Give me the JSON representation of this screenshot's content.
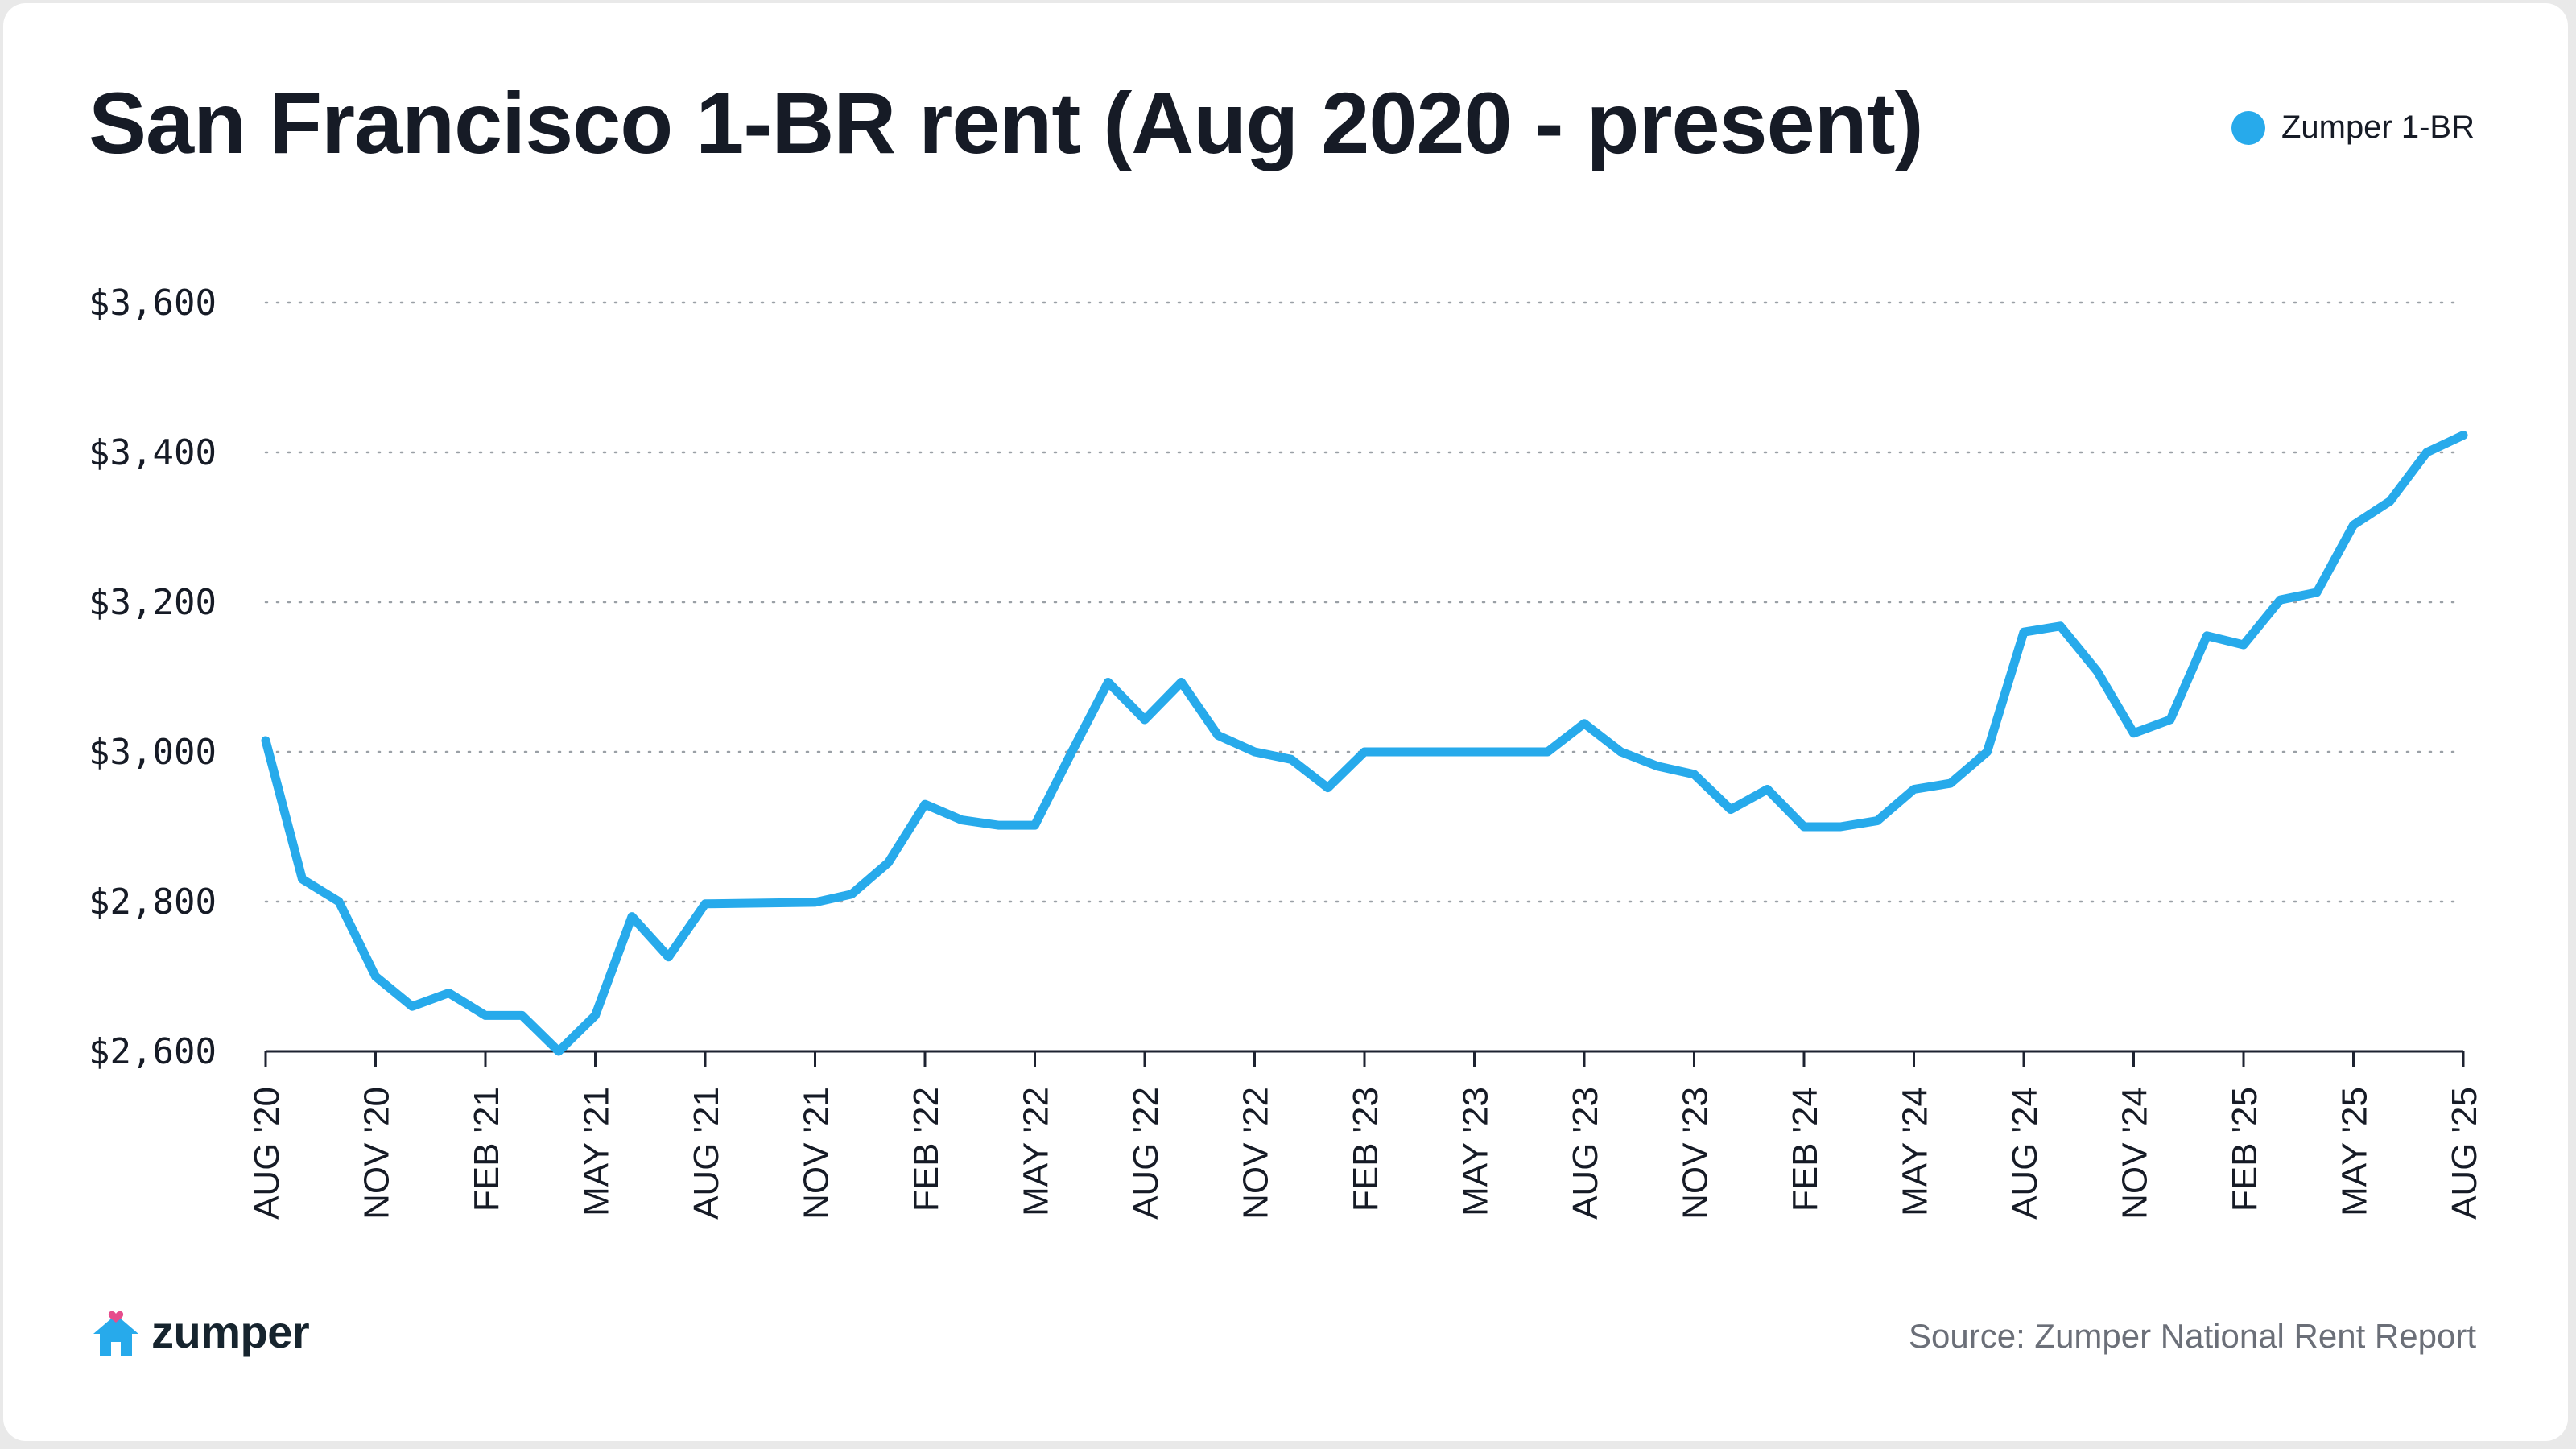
{
  "colors": {
    "line": "#27aaeb",
    "text": "#161b26",
    "muted": "#6b6f78",
    "grid": "#9aa0a6",
    "heart": "#e64d8c"
  },
  "footer": {
    "brand": "zumper",
    "source": "Source: Zumper National Rent Report",
    "logo_icon": "house-heart-icon"
  },
  "chart_data": {
    "type": "line",
    "title": "San Francisco 1-BR rent (Aug 2020 - present)",
    "xlabel": "",
    "ylabel": "",
    "ylim": [
      2600,
      3600
    ],
    "yticks": [
      {
        "value": 2600,
        "label": "$2,600"
      },
      {
        "value": 2800,
        "label": "$2,800"
      },
      {
        "value": 3000,
        "label": "$3,000"
      },
      {
        "value": 3200,
        "label": "$3,200"
      },
      {
        "value": 3400,
        "label": "$3,400"
      },
      {
        "value": 3600,
        "label": "$3,600"
      }
    ],
    "xticks": [
      {
        "label": "AUG '20",
        "x": "2020-08"
      },
      {
        "label": "NOV '20",
        "x": "2020-11"
      },
      {
        "label": "FEB '21",
        "x": "2021-02"
      },
      {
        "label": "MAY '21",
        "x": "2021-05"
      },
      {
        "label": "AUG '21",
        "x": "2021-08"
      },
      {
        "label": "NOV '21",
        "x": "2021-11"
      },
      {
        "label": "FEB '22",
        "x": "2022-02"
      },
      {
        "label": "MAY '22",
        "x": "2022-05"
      },
      {
        "label": "AUG '22",
        "x": "2022-08"
      },
      {
        "label": "NOV '22",
        "x": "2022-11"
      },
      {
        "label": "FEB '23",
        "x": "2023-02"
      },
      {
        "label": "MAY '23",
        "x": "2023-05"
      },
      {
        "label": "AUG '23",
        "x": "2023-08"
      },
      {
        "label": "NOV '23",
        "x": "2023-11"
      },
      {
        "label": "FEB '24",
        "x": "2024-02"
      },
      {
        "label": "MAY '24",
        "x": "2024-05"
      },
      {
        "label": "AUG '24",
        "x": "2024-08"
      },
      {
        "label": "NOV '24",
        "x": "2024-11"
      },
      {
        "label": "FEB '25",
        "x": "2025-02"
      },
      {
        "label": "MAY '25",
        "x": "2025-05"
      },
      {
        "label": "AUG '25",
        "x": "2025-08"
      }
    ],
    "grid": "horizontal dotted",
    "legend": "top-right",
    "series": [
      {
        "name": "Zumper 1-BR",
        "color": "#27aaeb",
        "points": [
          {
            "x": "2020-08",
            "y": 3015
          },
          {
            "x": "2020-09",
            "y": 2830
          },
          {
            "x": "2020-10",
            "y": 2800
          },
          {
            "x": "2020-11",
            "y": 2700
          },
          {
            "x": "2020-12",
            "y": 2660
          },
          {
            "x": "2021-01",
            "y": 2678
          },
          {
            "x": "2021-02",
            "y": 2648
          },
          {
            "x": "2021-03",
            "y": 2648
          },
          {
            "x": "2021-04",
            "y": 2600
          },
          {
            "x": "2021-05",
            "y": 2648
          },
          {
            "x": "2021-06",
            "y": 2780
          },
          {
            "x": "2021-07",
            "y": 2726
          },
          {
            "x": "2021-08",
            "y": 2797
          },
          {
            "x": "2021-11",
            "y": 2799
          },
          {
            "x": "2021-12",
            "y": 2810
          },
          {
            "x": "2022-01",
            "y": 2852
          },
          {
            "x": "2022-02",
            "y": 2930
          },
          {
            "x": "2022-03",
            "y": 2909
          },
          {
            "x": "2022-04",
            "y": 2902
          },
          {
            "x": "2022-05",
            "y": 2902
          },
          {
            "x": "2022-06",
            "y": 2999
          },
          {
            "x": "2022-07",
            "y": 3093
          },
          {
            "x": "2022-08",
            "y": 3043
          },
          {
            "x": "2022-09",
            "y": 3093
          },
          {
            "x": "2022-10",
            "y": 3022
          },
          {
            "x": "2022-11",
            "y": 3000
          },
          {
            "x": "2022-12",
            "y": 2990
          },
          {
            "x": "2023-01",
            "y": 2952
          },
          {
            "x": "2023-02",
            "y": 3000
          },
          {
            "x": "2023-07",
            "y": 3000
          },
          {
            "x": "2023-08",
            "y": 3038
          },
          {
            "x": "2023-09",
            "y": 3000
          },
          {
            "x": "2023-10",
            "y": 2981
          },
          {
            "x": "2023-11",
            "y": 2970
          },
          {
            "x": "2023-12",
            "y": 2923
          },
          {
            "x": "2024-01",
            "y": 2950
          },
          {
            "x": "2024-02",
            "y": 2900
          },
          {
            "x": "2024-03",
            "y": 2900
          },
          {
            "x": "2024-04",
            "y": 2908
          },
          {
            "x": "2024-05",
            "y": 2950
          },
          {
            "x": "2024-06",
            "y": 2958
          },
          {
            "x": "2024-07",
            "y": 3000
          },
          {
            "x": "2024-08",
            "y": 3160
          },
          {
            "x": "2024-09",
            "y": 3168
          },
          {
            "x": "2024-10",
            "y": 3108
          },
          {
            "x": "2024-11",
            "y": 3025
          },
          {
            "x": "2024-12",
            "y": 3043
          },
          {
            "x": "2025-01",
            "y": 3155
          },
          {
            "x": "2025-02",
            "y": 3143
          },
          {
            "x": "2025-03",
            "y": 3203
          },
          {
            "x": "2025-04",
            "y": 3213
          },
          {
            "x": "2025-05",
            "y": 3303
          },
          {
            "x": "2025-06",
            "y": 3335
          },
          {
            "x": "2025-07",
            "y": 3400
          },
          {
            "x": "2025-08",
            "y": 3423
          }
        ]
      }
    ]
  }
}
